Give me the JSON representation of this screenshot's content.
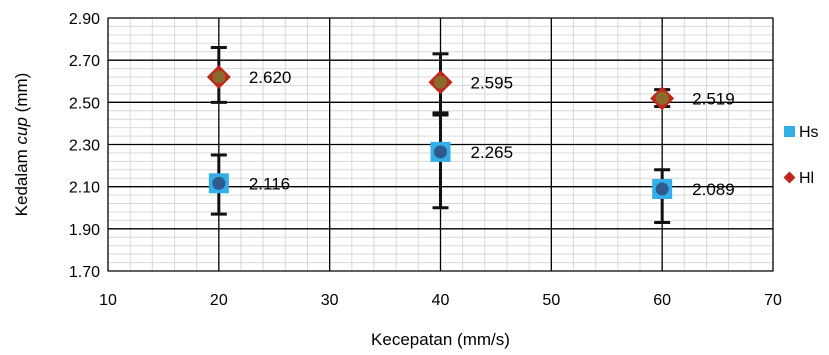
{
  "chart_data": {
    "type": "scatter",
    "xlabel": "Kecepatan (mm/s)",
    "ylabel": {
      "prefix": "Kedalam ",
      "italic": "cup",
      "suffix": " (mm)"
    },
    "xlim": [
      10,
      70
    ],
    "ylim": [
      1.7,
      2.9
    ],
    "xticks": [
      10,
      20,
      30,
      40,
      50,
      60,
      70
    ],
    "yticks": [
      1.7,
      1.9,
      2.1,
      2.3,
      2.5,
      2.7,
      2.9
    ],
    "xtick_labels": [
      "10",
      "20",
      "30",
      "40",
      "50",
      "60",
      "70"
    ],
    "ytick_labels": [
      "1.70",
      "1.90",
      "2.10",
      "2.30",
      "2.50",
      "2.70",
      "2.90"
    ],
    "grid": true,
    "legend_position": "right",
    "series": [
      {
        "name": "Hs",
        "marker": "square",
        "color": "#33aee8",
        "points": [
          {
            "x": 20,
            "y": 2.116,
            "label": "2.116",
            "err_low": 1.97,
            "err_high": 2.25
          },
          {
            "x": 40,
            "y": 2.265,
            "label": "2.265",
            "err_low": 2.0,
            "err_high": 2.44
          },
          {
            "x": 60,
            "y": 2.089,
            "label": "2.089",
            "err_low": 1.93,
            "err_high": 2.18
          }
        ]
      },
      {
        "name": "Hl",
        "marker": "diamond",
        "color": "#c0271b",
        "points": [
          {
            "x": 20,
            "y": 2.62,
            "label": "2.620",
            "err_low": 2.5,
            "err_high": 2.76
          },
          {
            "x": 40,
            "y": 2.595,
            "label": "2.595",
            "err_low": 2.45,
            "err_high": 2.73
          },
          {
            "x": 60,
            "y": 2.519,
            "label": "2.519",
            "err_low": 2.48,
            "err_high": 2.56
          }
        ]
      }
    ],
    "colors": {
      "mean_dot": "#2e5a8e",
      "mean_dot_hl": "#8a6b2d",
      "error_bar": "#111111",
      "grid_major": "#000000",
      "grid_minor": "#d9d9d9"
    }
  }
}
